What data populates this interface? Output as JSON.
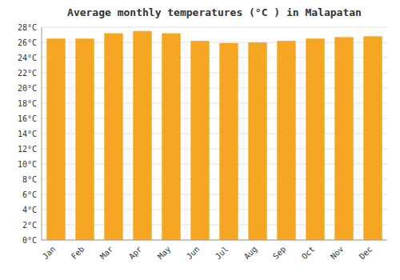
{
  "chart_data": {
    "type": "bar",
    "title": "Average monthly temperatures (°C ) in Malapatan",
    "categories": [
      "Jan",
      "Feb",
      "Mar",
      "Apr",
      "May",
      "Jun",
      "Jul",
      "Aug",
      "Sep",
      "Oct",
      "Nov",
      "Dec"
    ],
    "values": [
      26.5,
      26.5,
      27.2,
      27.5,
      27.2,
      26.2,
      25.9,
      26.0,
      26.2,
      26.5,
      26.7,
      26.8
    ],
    "color": "#F5A623",
    "ylim": [
      0,
      28
    ],
    "yticks": [
      {
        "value": 0,
        "label": "0°C"
      },
      {
        "value": 2,
        "label": "2°C"
      },
      {
        "value": 4,
        "label": "4°C"
      },
      {
        "value": 6,
        "label": "6°C"
      },
      {
        "value": 8,
        "label": "8°C"
      },
      {
        "value": 10,
        "label": "10°C"
      },
      {
        "value": 12,
        "label": "12°C"
      },
      {
        "value": 14,
        "label": "14°C"
      },
      {
        "value": 16,
        "label": "16°C"
      },
      {
        "value": 18,
        "label": "18°C"
      },
      {
        "value": 20,
        "label": "20°C"
      },
      {
        "value": 22,
        "label": "22°C"
      },
      {
        "value": 24,
        "label": "24°C"
      },
      {
        "value": 26,
        "label": "26°C"
      },
      {
        "value": 28,
        "label": "28°C"
      }
    ],
    "grid": true
  }
}
